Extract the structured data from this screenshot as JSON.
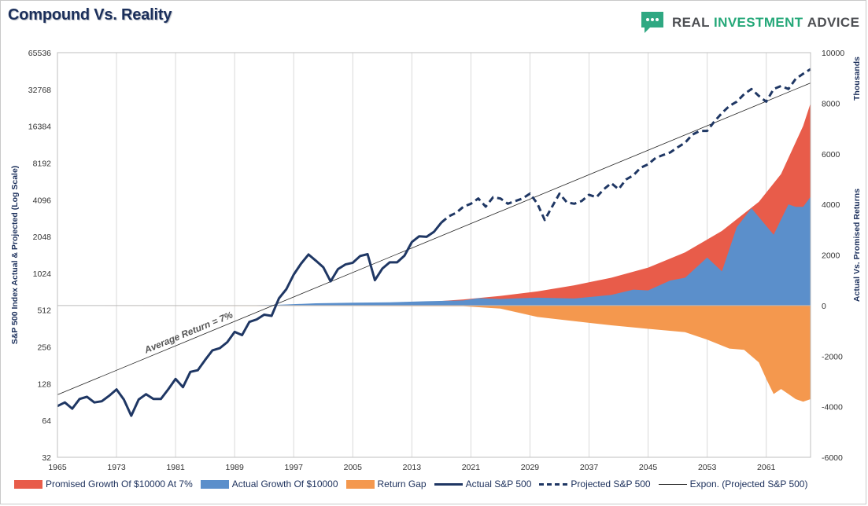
{
  "header": {
    "title": "Compound Vs. Reality",
    "brand": {
      "word1": "REAL",
      "word2": "INVESTMENT",
      "word3": "ADVICE"
    }
  },
  "colors": {
    "promised": "#e85c4a",
    "actual_growth": "#5b8fcb",
    "return_gap": "#f4984e",
    "sp500_line": "#1f3764",
    "title": "#1b2f5b",
    "brand_green": "#25a879"
  },
  "chart_data": {
    "type": "area",
    "x_axis": {
      "min": 1965,
      "max": 2067,
      "tick_labels": [
        "1965",
        "1973",
        "1981",
        "1989",
        "1997",
        "2005",
        "2013",
        "2021",
        "2029",
        "2037",
        "2045",
        "2053",
        "2061"
      ]
    },
    "y_left": {
      "title": "S&P 500 Index Actual & Projected (Log Scale)",
      "scale": "log2",
      "min": 32,
      "max": 65536,
      "tick_labels": [
        "32",
        "64",
        "128",
        "256",
        "512",
        "1024",
        "2048",
        "4096",
        "8192",
        "16384",
        "32768",
        "65536"
      ]
    },
    "y_right": {
      "title": "Actual Vs. Promised Returns",
      "units": "Thousands",
      "min": -6000,
      "max": 10000,
      "tick_labels": [
        "-6000",
        "-4000",
        "-2000",
        "0",
        "2000",
        "4000",
        "6000",
        "8000",
        "10000"
      ]
    },
    "annotation": {
      "text": "Average Return = 7%"
    },
    "series": [
      {
        "name": "Promised Growth Of $10000 At 7%",
        "type": "area",
        "axis": "right",
        "points": [
          [
            1965,
            0
          ],
          [
            1980,
            0
          ],
          [
            1990,
            5
          ],
          [
            1995,
            10
          ],
          [
            2000,
            25
          ],
          [
            2005,
            45
          ],
          [
            2010,
            80
          ],
          [
            2015,
            140
          ],
          [
            2020,
            240
          ],
          [
            2025,
            380
          ],
          [
            2030,
            560
          ],
          [
            2035,
            800
          ],
          [
            2040,
            1100
          ],
          [
            2045,
            1500
          ],
          [
            2050,
            2100
          ],
          [
            2055,
            2950
          ],
          [
            2060,
            4100
          ],
          [
            2063,
            5200
          ],
          [
            2066,
            7100
          ],
          [
            2067,
            8000
          ]
        ]
      },
      {
        "name": "Actual Growth Of $10000",
        "type": "area",
        "axis": "right",
        "points": [
          [
            1965,
            0
          ],
          [
            1990,
            0
          ],
          [
            1995,
            30
          ],
          [
            2000,
            90
          ],
          [
            2005,
            110
          ],
          [
            2010,
            130
          ],
          [
            2015,
            170
          ],
          [
            2020,
            200
          ],
          [
            2022,
            290
          ],
          [
            2025,
            260
          ],
          [
            2028,
            290
          ],
          [
            2030,
            310
          ],
          [
            2035,
            280
          ],
          [
            2040,
            420
          ],
          [
            2043,
            630
          ],
          [
            2045,
            600
          ],
          [
            2048,
            990
          ],
          [
            2050,
            1100
          ],
          [
            2053,
            1900
          ],
          [
            2055,
            1350
          ],
          [
            2057,
            3100
          ],
          [
            2059,
            3850
          ],
          [
            2060,
            3500
          ],
          [
            2062,
            2800
          ],
          [
            2063,
            3400
          ],
          [
            2064,
            4000
          ],
          [
            2065,
            3900
          ],
          [
            2066,
            3900
          ],
          [
            2067,
            4300
          ]
        ]
      },
      {
        "name": "Return Gap",
        "type": "area",
        "axis": "right",
        "points": [
          [
            1965,
            0
          ],
          [
            2020,
            -30
          ],
          [
            2025,
            -120
          ],
          [
            2030,
            -450
          ],
          [
            2035,
            -620
          ],
          [
            2040,
            -780
          ],
          [
            2045,
            -920
          ],
          [
            2050,
            -1050
          ],
          [
            2053,
            -1350
          ],
          [
            2056,
            -1700
          ],
          [
            2058,
            -1750
          ],
          [
            2060,
            -2250
          ],
          [
            2061,
            -2900
          ],
          [
            2062,
            -3500
          ],
          [
            2063,
            -3300
          ],
          [
            2064,
            -3500
          ],
          [
            2065,
            -3700
          ],
          [
            2066,
            -3800
          ],
          [
            2067,
            -3700
          ]
        ]
      },
      {
        "name": "Actual S&P 500",
        "type": "line",
        "axis": "left",
        "style": "solid",
        "points": [
          [
            1965,
            84
          ],
          [
            1966,
            90
          ],
          [
            1967,
            80
          ],
          [
            1968,
            96
          ],
          [
            1969,
            100
          ],
          [
            1970,
            90
          ],
          [
            1971,
            92
          ],
          [
            1972,
            102
          ],
          [
            1973,
            115
          ],
          [
            1974,
            95
          ],
          [
            1975,
            70
          ],
          [
            1976,
            95
          ],
          [
            1977,
            105
          ],
          [
            1978,
            96
          ],
          [
            1979,
            96
          ],
          [
            1980,
            115
          ],
          [
            1981,
            140
          ],
          [
            1982,
            120
          ],
          [
            1983,
            160
          ],
          [
            1984,
            165
          ],
          [
            1985,
            200
          ],
          [
            1986,
            240
          ],
          [
            1987,
            250
          ],
          [
            1988,
            280
          ],
          [
            1989,
            340
          ],
          [
            1990,
            320
          ],
          [
            1991,
            410
          ],
          [
            1992,
            430
          ],
          [
            1993,
            470
          ],
          [
            1994,
            460
          ],
          [
            1995,
            640
          ],
          [
            1996,
            760
          ],
          [
            1997,
            1000
          ],
          [
            1998,
            1230
          ],
          [
            1999,
            1460
          ],
          [
            2000,
            1300
          ],
          [
            2001,
            1150
          ],
          [
            2002,
            880
          ],
          [
            2003,
            1110
          ],
          [
            2004,
            1210
          ],
          [
            2005,
            1250
          ],
          [
            2006,
            1420
          ],
          [
            2007,
            1470
          ],
          [
            2008,
            900
          ],
          [
            2009,
            1120
          ],
          [
            2010,
            1260
          ],
          [
            2011,
            1260
          ],
          [
            2012,
            1430
          ],
          [
            2013,
            1850
          ],
          [
            2014,
            2060
          ],
          [
            2015,
            2040
          ],
          [
            2016,
            2240
          ],
          [
            2017,
            2670
          ]
        ]
      },
      {
        "name": "Projected S&P 500",
        "type": "line",
        "axis": "left",
        "style": "dashed",
        "points": [
          [
            2017,
            2670
          ],
          [
            2018,
            3000
          ],
          [
            2019,
            3200
          ],
          [
            2020,
            3600
          ],
          [
            2021,
            3800
          ],
          [
            2022,
            4200
          ],
          [
            2023,
            3600
          ],
          [
            2024,
            4300
          ],
          [
            2025,
            4200
          ],
          [
            2026,
            3800
          ],
          [
            2027,
            4000
          ],
          [
            2028,
            4200
          ],
          [
            2029,
            4600
          ],
          [
            2030,
            3800
          ],
          [
            2031,
            2800
          ],
          [
            2032,
            3600
          ],
          [
            2033,
            4600
          ],
          [
            2034,
            3900
          ],
          [
            2035,
            3800
          ],
          [
            2036,
            4000
          ],
          [
            2037,
            4500
          ],
          [
            2038,
            4300
          ],
          [
            2039,
            5000
          ],
          [
            2040,
            5600
          ],
          [
            2041,
            5000
          ],
          [
            2042,
            6000
          ],
          [
            2043,
            6500
          ],
          [
            2044,
            7500
          ],
          [
            2045,
            8000
          ],
          [
            2046,
            9000
          ],
          [
            2047,
            9500
          ],
          [
            2048,
            10000
          ],
          [
            2049,
            11000
          ],
          [
            2050,
            12000
          ],
          [
            2051,
            14000
          ],
          [
            2052,
            15000
          ],
          [
            2053,
            15000
          ],
          [
            2054,
            18000
          ],
          [
            2055,
            21000
          ],
          [
            2056,
            24000
          ],
          [
            2057,
            26000
          ],
          [
            2058,
            30000
          ],
          [
            2059,
            33000
          ],
          [
            2060,
            29000
          ],
          [
            2061,
            26000
          ],
          [
            2062,
            33000
          ],
          [
            2063,
            35000
          ],
          [
            2064,
            33000
          ],
          [
            2065,
            40000
          ],
          [
            2066,
            44000
          ],
          [
            2067,
            48000
          ]
        ]
      },
      {
        "name": "Expon. (Projected S&P 500)",
        "type": "trendline",
        "axis": "left",
        "style": "thin",
        "points": [
          [
            1965,
            104
          ],
          [
            2067,
            37000
          ]
        ]
      }
    ],
    "legend": {
      "position": "bottom"
    },
    "grid": {
      "vertical": true,
      "horizontal": false
    }
  }
}
